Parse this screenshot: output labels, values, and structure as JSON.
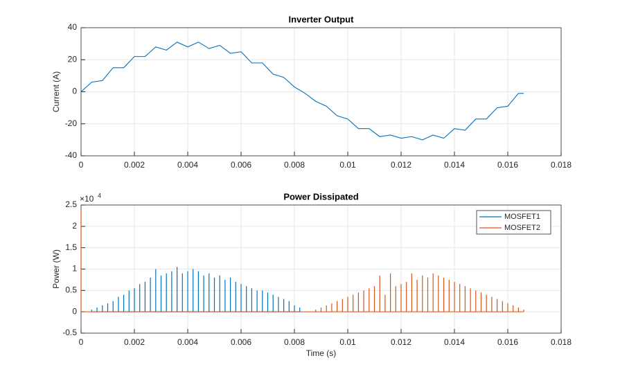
{
  "chart_data": [
    {
      "type": "line",
      "title": "Inverter Output",
      "ylabel": "Current (A)",
      "color": "#0072bd",
      "x": [
        0,
        0.0004,
        0.0008,
        0.0012,
        0.0016,
        0.002,
        0.0024,
        0.0028,
        0.0032,
        0.0036,
        0.004,
        0.0044,
        0.0048,
        0.0052,
        0.0056,
        0.006,
        0.0064,
        0.0068,
        0.0072,
        0.0076,
        0.008,
        0.0084,
        0.0088,
        0.0092,
        0.0096,
        0.01,
        0.0104,
        0.0108,
        0.0112,
        0.0116,
        0.012,
        0.0124,
        0.0128,
        0.0132,
        0.0136,
        0.014,
        0.0144,
        0.0148,
        0.0152,
        0.0156,
        0.016,
        0.0164,
        0.0166
      ],
      "values": [
        0,
        6,
        7,
        15,
        15,
        22,
        22,
        28,
        26,
        31,
        28,
        31,
        27,
        29,
        24,
        25,
        18,
        18,
        11,
        9,
        3,
        -1,
        -6,
        -9,
        -15,
        -17,
        -23,
        -23,
        -28,
        -27,
        -29,
        -28,
        -30,
        -27,
        -29,
        -23,
        -24,
        -17,
        -17,
        -10,
        -9,
        -1,
        -1
      ],
      "xlim": [
        0,
        0.018
      ],
      "xticks": [
        0,
        0.002,
        0.004,
        0.006,
        0.008,
        0.01,
        0.012,
        0.014,
        0.016,
        0.018
      ],
      "ylim": [
        -40,
        40
      ],
      "yticks": [
        -40,
        -20,
        0,
        20,
        40
      ],
      "grid": true
    },
    {
      "type": "stem",
      "title": "Power Dissipated",
      "xlabel": "Time (s)",
      "ylabel": "Power (W)",
      "y_multiplier": {
        "base": "×10",
        "power": "4"
      },
      "legend": "northeast",
      "series": [
        {
          "name": "MOSFET1",
          "color": "#0072bd",
          "x": [
            0.0004,
            0.0006,
            0.0008,
            0.001,
            0.0012,
            0.0014,
            0.0016,
            0.0018,
            0.002,
            0.0022,
            0.0024,
            0.0026,
            0.0028,
            0.003,
            0.0032,
            0.0034,
            0.0036,
            0.0038,
            0.004,
            0.0042,
            0.0044,
            0.0046,
            0.0048,
            0.005,
            0.0052,
            0.0054,
            0.0056,
            0.0058,
            0.006,
            0.0062,
            0.0064,
            0.0066,
            0.0068,
            0.007,
            0.0072,
            0.0074,
            0.0076,
            0.0078,
            0.008,
            0.0082
          ],
          "values": [
            0.05,
            0.1,
            0.15,
            0.2,
            0.25,
            0.35,
            0.4,
            0.5,
            0.55,
            0.65,
            0.7,
            0.8,
            1.0,
            0.85,
            0.9,
            0.95,
            1.05,
            0.9,
            0.95,
            1.0,
            0.95,
            0.85,
            0.9,
            0.8,
            0.85,
            0.75,
            0.8,
            0.7,
            0.65,
            0.6,
            0.55,
            0.5,
            0.5,
            0.45,
            0.4,
            0.35,
            0.3,
            0.25,
            0.15,
            0.1
          ]
        },
        {
          "name": "MOSFET2",
          "color": "#d95319",
          "x": [
            0,
            0.0088,
            0.009,
            0.0092,
            0.0094,
            0.0096,
            0.0098,
            0.01,
            0.0102,
            0.0104,
            0.0106,
            0.0108,
            0.011,
            0.0112,
            0.0114,
            0.0116,
            0.0118,
            0.012,
            0.0122,
            0.0124,
            0.0126,
            0.0128,
            0.013,
            0.0132,
            0.0134,
            0.0136,
            0.0138,
            0.014,
            0.0142,
            0.0144,
            0.0146,
            0.0148,
            0.015,
            0.0152,
            0.0154,
            0.0156,
            0.0158,
            0.016,
            0.0162,
            0.0164,
            0.0166
          ],
          "values": [
            2.4,
            0.05,
            0.1,
            0.15,
            0.2,
            0.25,
            0.3,
            0.35,
            0.4,
            0.45,
            0.5,
            0.55,
            0.6,
            0.85,
            0.4,
            0.9,
            0.6,
            0.65,
            0.7,
            0.9,
            0.75,
            0.85,
            0.8,
            0.9,
            0.85,
            0.8,
            0.75,
            0.7,
            0.65,
            0.6,
            0.55,
            0.5,
            0.45,
            0.4,
            0.35,
            0.3,
            0.25,
            0.2,
            0.15,
            0.1,
            0.05
          ]
        }
      ],
      "xlim": [
        0,
        0.018
      ],
      "xticks": [
        0,
        0.002,
        0.004,
        0.006,
        0.008,
        0.01,
        0.012,
        0.014,
        0.016,
        0.018
      ],
      "ylim": [
        -0.5,
        2.5
      ],
      "yticks": [
        -0.5,
        0,
        0.5,
        1,
        1.5,
        2,
        2.5
      ],
      "grid": true
    }
  ]
}
